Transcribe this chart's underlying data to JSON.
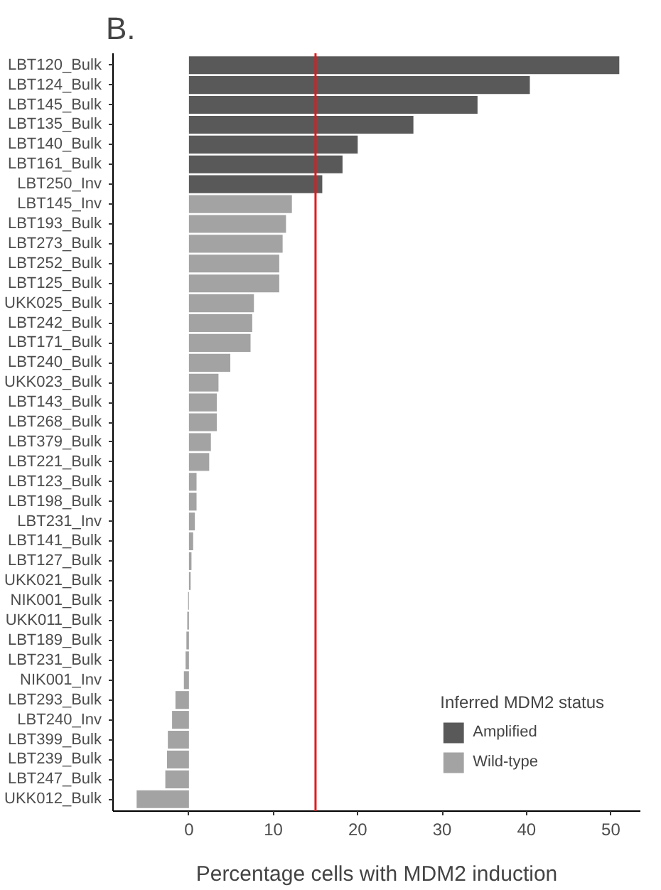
{
  "chart_data": {
    "type": "bar",
    "orientation": "horizontal",
    "title": "B.",
    "xlabel": "Percentage cells with MDM2 induction",
    "legend_title": "Inferred MDM2 status",
    "legend": "bottom right",
    "grid": false,
    "categories": [
      "LBT120_Bulk",
      "LBT124_Bulk",
      "LBT145_Bulk",
      "LBT135_Bulk",
      "LBT140_Bulk",
      "LBT161_Bulk",
      "LBT250_Inv",
      "LBT145_Inv",
      "LBT193_Bulk",
      "LBT273_Bulk",
      "LBT252_Bulk",
      "LBT125_Bulk",
      "UKK025_Bulk",
      "LBT242_Bulk",
      "LBT171_Bulk",
      "LBT240_Bulk",
      "UKK023_Bulk",
      "LBT143_Bulk",
      "LBT268_Bulk",
      "LBT379_Bulk",
      "LBT221_Bulk",
      "LBT123_Bulk",
      "LBT198_Bulk",
      "LBT231_Inv",
      "LBT141_Bulk",
      "LBT127_Bulk",
      "UKK021_Bulk",
      "NIK001_Bulk",
      "UKK011_Bulk",
      "LBT189_Bulk",
      "LBT231_Bulk",
      "NIK001_Inv",
      "LBT293_Bulk",
      "LBT240_Inv",
      "LBT399_Bulk",
      "LBT239_Bulk",
      "LBT247_Bulk",
      "UKK012_Bulk"
    ],
    "series": [
      {
        "name": "Amplified",
        "color": "#595959",
        "values": [
          51.0,
          40.4,
          34.2,
          26.6,
          20.0,
          18.2,
          15.8,
          null,
          null,
          null,
          null,
          null,
          null,
          null,
          null,
          null,
          null,
          null,
          null,
          null,
          null,
          null,
          null,
          null,
          null,
          null,
          null,
          null,
          null,
          null,
          null,
          null,
          null,
          null,
          null,
          null,
          null,
          null
        ]
      },
      {
        "name": "Wild-type",
        "color": "#a3a3a3",
        "values": [
          null,
          null,
          null,
          null,
          null,
          null,
          null,
          12.2,
          11.5,
          11.1,
          10.7,
          10.7,
          7.7,
          7.5,
          7.3,
          4.9,
          3.5,
          3.3,
          3.3,
          2.6,
          2.4,
          0.9,
          0.9,
          0.7,
          0.5,
          0.3,
          0.2,
          -0.1,
          -0.2,
          -0.3,
          -0.4,
          -0.6,
          -1.6,
          -2.0,
          -2.5,
          -2.6,
          -2.8,
          -6.2
        ]
      }
    ],
    "xlim": [
      -9,
      53.5
    ],
    "xticks": [
      0,
      10,
      20,
      30,
      40,
      50
    ],
    "ref_lines": [
      {
        "axis": "x",
        "value": 15,
        "color": "#e41a1c"
      }
    ]
  }
}
